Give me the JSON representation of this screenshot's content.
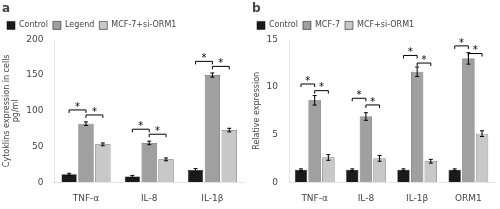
{
  "chart_data": [
    {
      "type": "bar",
      "title": "a",
      "ylabel": "Cytoklins expression in cells\npg/ml",
      "categories": [
        "TNF-α",
        "IL-8",
        "IL-1β"
      ],
      "series": [
        {
          "name": "Control",
          "color": "#1a1a1a",
          "values": [
            11,
            8,
            17
          ],
          "errors": [
            1.5,
            1.5,
            2.0
          ]
        },
        {
          "name": "Legend",
          "color": "#a0a0a0",
          "values": [
            82,
            55,
            150
          ],
          "errors": [
            2.5,
            2.5,
            3.0
          ]
        },
        {
          "name": "MCF-7+si-ORM1",
          "color": "#c8c8c8",
          "values": [
            53,
            32,
            73
          ],
          "errors": [
            2.0,
            2.0,
            2.5
          ]
        }
      ],
      "ylim": [
        0,
        200
      ],
      "yticks": [
        0,
        50,
        100,
        150,
        200
      ],
      "grid": false,
      "legend": "upper left",
      "annotations": [
        {
          "text": "*",
          "category": "TNF-α",
          "between": [
            "Control",
            "Legend"
          ],
          "y": 97
        },
        {
          "text": "*",
          "category": "TNF-α",
          "between": [
            "Legend",
            "MCF-7+si-ORM1"
          ],
          "y": 90
        },
        {
          "text": "*",
          "category": "IL-8",
          "between": [
            "Control",
            "Legend"
          ],
          "y": 70
        },
        {
          "text": "*",
          "category": "IL-8",
          "between": [
            "Legend",
            "MCF-7+si-ORM1"
          ],
          "y": 63
        },
        {
          "text": "*",
          "category": "IL-1β",
          "between": [
            "Control",
            "Legend"
          ],
          "y": 165
        },
        {
          "text": "*",
          "category": "IL-1β",
          "between": [
            "Legend",
            "MCF-7+si-ORM1"
          ],
          "y": 158
        }
      ]
    },
    {
      "type": "bar",
      "title": "b",
      "ylabel": "Relative expression",
      "categories": [
        "TNF-α",
        "IL-8",
        "IL-1β",
        "ORM1"
      ],
      "series": [
        {
          "name": "Control",
          "color": "#1a1a1a",
          "values": [
            1.3,
            1.3,
            1.3,
            1.3
          ],
          "errors": [
            0.1,
            0.1,
            0.1,
            0.1
          ]
        },
        {
          "name": "MCF-7",
          "color": "#a0a0a0",
          "values": [
            8.6,
            6.9,
            11.6,
            13.0
          ],
          "errors": [
            0.5,
            0.4,
            0.5,
            0.6
          ]
        },
        {
          "name": "MCF+si-ORM1",
          "color": "#c8c8c8",
          "values": [
            2.6,
            2.5,
            2.2,
            5.1
          ],
          "errors": [
            0.3,
            0.3,
            0.2,
            0.3
          ]
        }
      ],
      "ylim": [
        0,
        15
      ],
      "yticks": [
        0,
        5,
        10,
        15
      ],
      "grid": false,
      "legend": "upper left",
      "annotations": [
        {
          "text": "*",
          "category": "TNF-α",
          "between": [
            "Control",
            "MCF-7"
          ],
          "y": 10.0
        },
        {
          "text": "*",
          "category": "TNF-α",
          "between": [
            "MCF-7",
            "MCF+si-ORM1"
          ],
          "y": 9.3
        },
        {
          "text": "*",
          "category": "IL-8",
          "between": [
            "Control",
            "MCF-7"
          ],
          "y": 8.5
        },
        {
          "text": "*",
          "category": "IL-8",
          "between": [
            "MCF-7",
            "MCF+si-ORM1"
          ],
          "y": 7.8
        },
        {
          "text": "*",
          "category": "IL-1β",
          "between": [
            "Control",
            "MCF-7"
          ],
          "y": 13.0
        },
        {
          "text": "*",
          "category": "IL-1β",
          "between": [
            "MCF-7",
            "MCF+si-ORM1"
          ],
          "y": 12.2
        },
        {
          "text": "*",
          "category": "ORM1",
          "between": [
            "Control",
            "MCF-7"
          ],
          "y": 14.0
        },
        {
          "text": "*",
          "category": "ORM1",
          "between": [
            "MCF-7",
            "MCF+si-ORM1"
          ],
          "y": 13.2
        }
      ]
    }
  ]
}
